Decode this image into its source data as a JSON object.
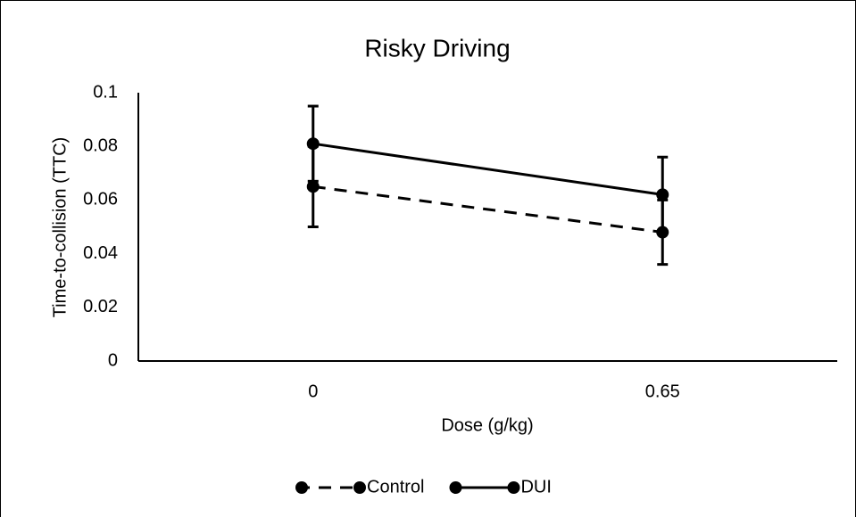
{
  "chart_data": {
    "type": "line",
    "title": "Risky Driving",
    "x_label": "Dose (g/kg)",
    "y_label": "Time-to-collision (TTC)",
    "categories": [
      "0",
      "0.65"
    ],
    "series": [
      {
        "name": "Control",
        "color": "#000000",
        "dash": "dashed",
        "values": [
          0.065,
          0.048
        ],
        "errors": [
          0.015,
          0.012
        ]
      },
      {
        "name": "DUI",
        "color": "#000000",
        "dash": "solid",
        "values": [
          0.081,
          0.062
        ],
        "errors": [
          0.014,
          0.014
        ]
      }
    ],
    "ylim": [
      0,
      0.1
    ],
    "yticks": [
      0,
      0.02,
      0.04,
      0.06,
      0.08,
      0.1
    ],
    "grid": false,
    "legend": "bottom"
  }
}
